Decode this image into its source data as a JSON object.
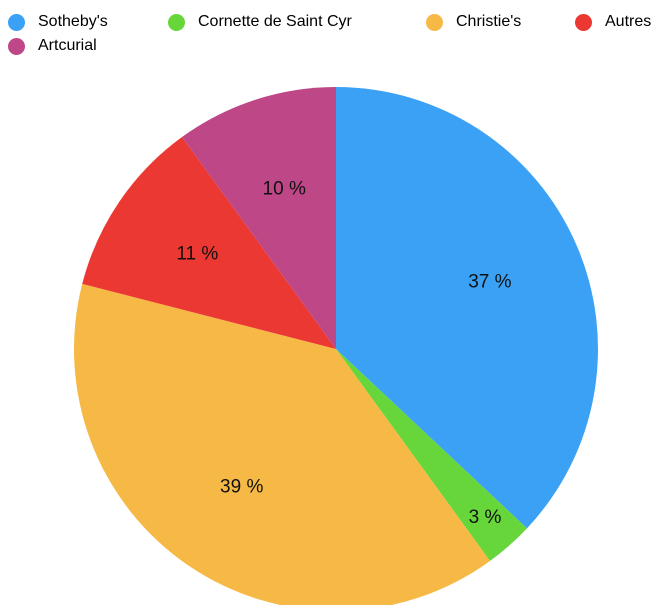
{
  "chart_data": {
    "type": "pie",
    "title": "",
    "legend_position": "top",
    "series": [
      {
        "name": "Sotheby's",
        "value": 37,
        "label": "37 %",
        "color": "#3aa1f5"
      },
      {
        "name": "Cornette de Saint Cyr",
        "value": 3,
        "label": "3 %",
        "color": "#66d63b"
      },
      {
        "name": "Christie's",
        "value": 39,
        "label": "39 %",
        "color": "#f7b946"
      },
      {
        "name": "Autres",
        "value": 11,
        "label": "11 %",
        "color": "#ec3832"
      },
      {
        "name": "Artcurial",
        "value": 10,
        "label": "10 %",
        "color": "#bd4787"
      }
    ]
  }
}
